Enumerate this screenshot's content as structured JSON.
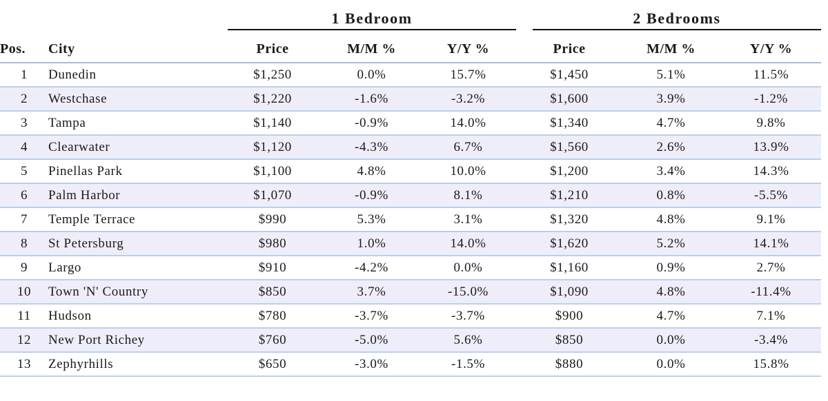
{
  "groups": {
    "one_bedroom": "1 Bedroom",
    "two_bedrooms": "2 Bedrooms"
  },
  "columns": {
    "pos": "Pos.",
    "city": "City",
    "price_1": "Price",
    "mm_1": "M/M %",
    "yy_1": "Y/Y %",
    "price_2": "Price",
    "mm_2": "M/M %",
    "yy_2": "Y/Y %"
  },
  "rows": [
    {
      "pos": "1",
      "city": "Dunedin",
      "p1": "$1,250",
      "mm1": "0.0%",
      "yy1": "15.7%",
      "p2": "$1,450",
      "mm2": "5.1%",
      "yy2": "11.5%"
    },
    {
      "pos": "2",
      "city": "Westchase",
      "p1": "$1,220",
      "mm1": "-1.6%",
      "yy1": "-3.2%",
      "p2": "$1,600",
      "mm2": "3.9%",
      "yy2": "-1.2%"
    },
    {
      "pos": "3",
      "city": "Tampa",
      "p1": "$1,140",
      "mm1": "-0.9%",
      "yy1": "14.0%",
      "p2": "$1,340",
      "mm2": "4.7%",
      "yy2": "9.8%"
    },
    {
      "pos": "4",
      "city": "Clearwater",
      "p1": "$1,120",
      "mm1": "-4.3%",
      "yy1": "6.7%",
      "p2": "$1,560",
      "mm2": "2.6%",
      "yy2": "13.9%"
    },
    {
      "pos": "5",
      "city": "Pinellas Park",
      "p1": "$1,100",
      "mm1": "4.8%",
      "yy1": "10.0%",
      "p2": "$1,200",
      "mm2": "3.4%",
      "yy2": "14.3%"
    },
    {
      "pos": "6",
      "city": "Palm Harbor",
      "p1": "$1,070",
      "mm1": "-0.9%",
      "yy1": "8.1%",
      "p2": "$1,210",
      "mm2": "0.8%",
      "yy2": "-5.5%"
    },
    {
      "pos": "7",
      "city": "Temple Terrace",
      "p1": "$990",
      "mm1": "5.3%",
      "yy1": "3.1%",
      "p2": "$1,320",
      "mm2": "4.8%",
      "yy2": "9.1%"
    },
    {
      "pos": "8",
      "city": "St Petersburg",
      "p1": "$980",
      "mm1": "1.0%",
      "yy1": "14.0%",
      "p2": "$1,620",
      "mm2": "5.2%",
      "yy2": "14.1%"
    },
    {
      "pos": "9",
      "city": "Largo",
      "p1": "$910",
      "mm1": "-4.2%",
      "yy1": "0.0%",
      "p2": "$1,160",
      "mm2": "0.9%",
      "yy2": "2.7%"
    },
    {
      "pos": "10",
      "city": "Town 'N' Country",
      "p1": "$850",
      "mm1": "3.7%",
      "yy1": "-15.0%",
      "p2": "$1,090",
      "mm2": "4.8%",
      "yy2": "-11.4%"
    },
    {
      "pos": "11",
      "city": "Hudson",
      "p1": "$780",
      "mm1": "-3.7%",
      "yy1": "-3.7%",
      "p2": "$900",
      "mm2": "4.7%",
      "yy2": "7.1%"
    },
    {
      "pos": "12",
      "city": "New Port Richey",
      "p1": "$760",
      "mm1": "-5.0%",
      "yy1": "5.6%",
      "p2": "$850",
      "mm2": "0.0%",
      "yy2": "-3.4%"
    },
    {
      "pos": "13",
      "city": "Zephyrhills",
      "p1": "$650",
      "mm1": "-3.0%",
      "yy1": "-1.5%",
      "p2": "$880",
      "mm2": "0.0%",
      "yy2": "15.8%"
    }
  ]
}
